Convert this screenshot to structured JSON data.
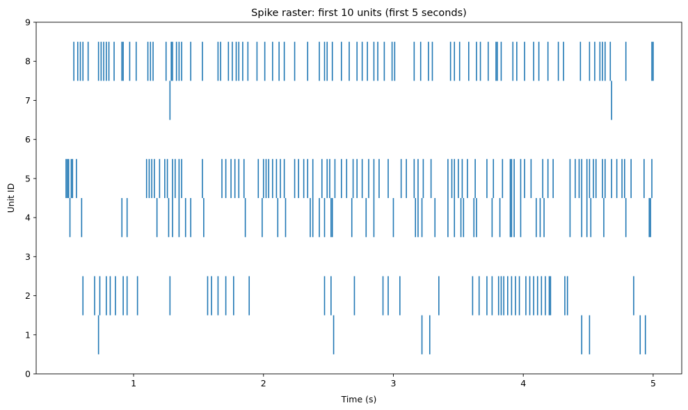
{
  "chart_data": {
    "type": "raster",
    "title": "Spike raster: first 10 units (first 5 seconds)",
    "xlabel": "Time (s)",
    "ylabel": "Unit ID",
    "xlim": [
      0.25,
      5.22
    ],
    "ylim": [
      0,
      9
    ],
    "xticks": [
      1,
      2,
      3,
      4,
      5
    ],
    "yticks": [
      0,
      1,
      2,
      3,
      4,
      5,
      6,
      7,
      8,
      9
    ],
    "grid": false,
    "legend": "none",
    "color": "#1f77b4",
    "line_half_height": 0.5,
    "series": [
      {
        "unit": 1,
        "spikes": [
          0.73,
          2.54,
          3.22,
          3.28,
          4.45,
          4.51,
          4.9,
          4.94
        ]
      },
      {
        "unit": 2,
        "spikes": [
          0.61,
          0.7,
          0.74,
          0.79,
          0.82,
          0.86,
          0.92,
          0.95,
          1.03,
          1.28,
          1.57,
          1.6,
          1.65,
          1.71,
          1.77,
          1.89,
          2.47,
          2.52,
          2.7,
          2.92,
          2.96,
          3.05,
          3.35,
          3.61,
          3.66,
          3.72,
          3.76,
          3.81,
          3.83,
          3.85,
          3.88,
          3.91,
          3.94,
          3.97,
          4.02,
          4.05,
          4.08,
          4.11,
          4.14,
          4.17,
          4.2,
          4.21,
          4.32,
          4.34,
          4.85
        ]
      },
      {
        "unit": 4,
        "spikes": [
          0.51,
          0.6,
          0.91,
          0.95,
          1.18,
          1.27,
          1.3,
          1.35,
          1.4,
          1.44,
          1.54,
          1.86,
          1.99,
          2.11,
          2.17,
          2.36,
          2.38,
          2.43,
          2.47,
          2.52,
          2.53,
          2.68,
          2.79,
          2.85,
          3.0,
          3.17,
          3.19,
          3.22,
          3.32,
          3.42,
          3.47,
          3.52,
          3.54,
          3.62,
          3.64,
          3.76,
          3.82,
          3.9,
          3.91,
          3.93,
          3.98,
          4.1,
          4.13,
          4.16,
          4.36,
          4.45,
          4.49,
          4.52,
          4.62,
          4.79,
          4.97,
          4.98
        ]
      },
      {
        "unit": 5,
        "spikes": [
          0.48,
          0.49,
          0.5,
          0.52,
          0.53,
          0.56,
          1.1,
          1.12,
          1.14,
          1.16,
          1.2,
          1.24,
          1.26,
          1.3,
          1.32,
          1.35,
          1.37,
          1.53,
          1.68,
          1.71,
          1.75,
          1.78,
          1.81,
          1.85,
          1.96,
          2.0,
          2.02,
          2.04,
          2.07,
          2.1,
          2.13,
          2.16,
          2.24,
          2.27,
          2.31,
          2.34,
          2.38,
          2.45,
          2.49,
          2.51,
          2.55,
          2.6,
          2.64,
          2.69,
          2.72,
          2.76,
          2.81,
          2.85,
          2.89,
          2.96,
          3.06,
          3.1,
          3.16,
          3.19,
          3.23,
          3.29,
          3.42,
          3.45,
          3.47,
          3.5,
          3.53,
          3.57,
          3.63,
          3.72,
          3.77,
          3.84,
          3.9,
          3.91,
          3.93,
          3.98,
          4.01,
          4.06,
          4.15,
          4.19,
          4.23,
          4.36,
          4.4,
          4.43,
          4.45,
          4.49,
          4.51,
          4.54,
          4.56,
          4.61,
          4.63,
          4.68,
          4.72,
          4.76,
          4.78,
          4.83,
          4.93,
          4.99
        ]
      },
      {
        "unit": 7,
        "spikes": [
          1.28,
          4.68
        ]
      },
      {
        "unit": 8,
        "spikes": [
          0.54,
          0.57,
          0.59,
          0.61,
          0.65,
          0.73,
          0.75,
          0.77,
          0.79,
          0.81,
          0.85,
          0.91,
          0.92,
          0.97,
          1.02,
          1.11,
          1.13,
          1.15,
          1.25,
          1.29,
          1.3,
          1.33,
          1.35,
          1.37,
          1.44,
          1.53,
          1.65,
          1.67,
          1.73,
          1.76,
          1.79,
          1.81,
          1.84,
          1.88,
          1.95,
          2.01,
          2.07,
          2.12,
          2.16,
          2.24,
          2.34,
          2.43,
          2.47,
          2.49,
          2.53,
          2.6,
          2.66,
          2.72,
          2.76,
          2.8,
          2.85,
          2.88,
          2.93,
          2.99,
          3.01,
          3.16,
          3.21,
          3.27,
          3.3,
          3.44,
          3.47,
          3.51,
          3.58,
          3.64,
          3.67,
          3.73,
          3.79,
          3.8,
          3.83,
          3.92,
          3.95,
          4.01,
          4.08,
          4.12,
          4.19,
          4.27,
          4.31,
          4.44,
          4.51,
          4.55,
          4.59,
          4.61,
          4.63,
          4.67,
          4.79,
          4.99,
          5.0
        ]
      }
    ]
  }
}
